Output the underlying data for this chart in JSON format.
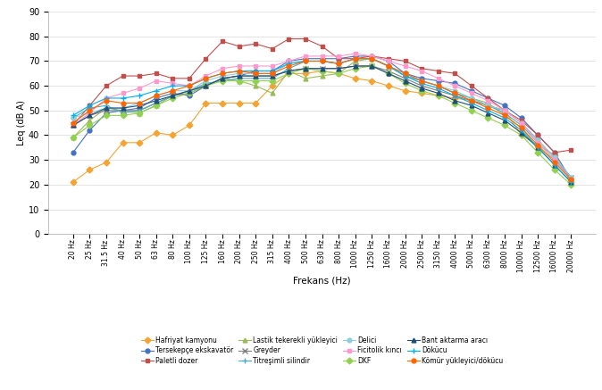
{
  "freqs": [
    20,
    25,
    31.5,
    40,
    50,
    63,
    80,
    100,
    125,
    160,
    200,
    250,
    315,
    400,
    500,
    630,
    800,
    1000,
    1250,
    1600,
    2000,
    2500,
    3150,
    4000,
    5000,
    6300,
    8000,
    10000,
    12500,
    16000,
    20000
  ],
  "freq_labels": [
    "20 Hz",
    "25 Hz",
    "31.5 Hz",
    "40 Hz",
    "50 Hz",
    "63 Hz",
    "80 Hz",
    "100 Hz",
    "125 Hz",
    "160 Hz",
    "200 Hz",
    "250 Hz",
    "315 Hz",
    "400 Hz",
    "500 Hz",
    "630 Hz",
    "800 Hz",
    "1000 Hz",
    "1250 Hz",
    "1600 Hz",
    "2000 Hz",
    "2500 Hz",
    "3150 Hz",
    "4000 Hz",
    "5000 Hz",
    "6300 Hz",
    "8000 Hz",
    "10000 Hz",
    "12500 Hz",
    "16000 Hz",
    "20000 Hz"
  ],
  "series": [
    {
      "label": "Hafriyat kamyonu",
      "color": "#F4A433",
      "marker": "D",
      "markersize": 3.5,
      "values": [
        21,
        26,
        29,
        37,
        37,
        41,
        40,
        44,
        53,
        53,
        53,
        53,
        60,
        65,
        65,
        66,
        65,
        63,
        62,
        60,
        58,
        57,
        56,
        55,
        54,
        52,
        50,
        40,
        36,
        32,
        21
      ]
    },
    {
      "label": "Tersekepçe ekskavatör",
      "color": "#4472C4",
      "marker": "o",
      "markersize": 3.5,
      "values": [
        33,
        42,
        49,
        50,
        51,
        55,
        57,
        56,
        60,
        63,
        64,
        66,
        66,
        70,
        71,
        71,
        71,
        72,
        72,
        70,
        65,
        63,
        62,
        61,
        58,
        55,
        52,
        47,
        40,
        33,
        22
      ]
    },
    {
      "label": "Paletli dozer",
      "color": "#C0504D",
      "marker": "s",
      "markersize": 3.5,
      "values": [
        44,
        52,
        60,
        64,
        64,
        65,
        63,
        63,
        71,
        78,
        76,
        77,
        75,
        79,
        79,
        76,
        71,
        71,
        72,
        71,
        70,
        67,
        66,
        65,
        60,
        55,
        50,
        46,
        40,
        33,
        34
      ]
    },
    {
      "label": "Lastik tekerekli yükleyici",
      "color": "#9BBB59",
      "marker": "^",
      "markersize": 3.5,
      "values": [
        39,
        46,
        51,
        50,
        49,
        52,
        56,
        58,
        60,
        63,
        62,
        60,
        57,
        66,
        63,
        64,
        65,
        70,
        71,
        68,
        64,
        62,
        60,
        57,
        55,
        53,
        48,
        43,
        35,
        30,
        22
      ]
    },
    {
      "label": "Greyder",
      "color": "#808080",
      "marker": "x",
      "markersize": 4,
      "values": [
        44,
        48,
        50,
        50,
        50,
        53,
        56,
        57,
        60,
        63,
        64,
        64,
        64,
        66,
        67,
        67,
        67,
        68,
        68,
        66,
        63,
        60,
        58,
        56,
        54,
        52,
        50,
        45,
        38,
        31,
        23
      ]
    },
    {
      "label": "Titreşimli silindir",
      "color": "#4BACC6",
      "marker": "+",
      "markersize": 5,
      "values": [
        47,
        51,
        52,
        49,
        50,
        53,
        56,
        58,
        61,
        62,
        63,
        63,
        63,
        67,
        70,
        70,
        69,
        71,
        71,
        68,
        64,
        62,
        60,
        57,
        55,
        52,
        49,
        44,
        37,
        30,
        23
      ]
    },
    {
      "label": "Delici",
      "color": "#92CDDC",
      "marker": "o",
      "markersize": 3.5,
      "values": [
        47,
        49,
        51,
        51,
        53,
        56,
        58,
        58,
        62,
        64,
        65,
        65,
        65,
        69,
        70,
        70,
        69,
        71,
        71,
        68,
        65,
        62,
        60,
        58,
        55,
        52,
        50,
        45,
        38,
        31,
        23
      ]
    },
    {
      "label": "Ficitolik kıncı",
      "color": "#FF99CC",
      "marker": "s",
      "markersize": 3.5,
      "values": [
        44,
        49,
        55,
        57,
        59,
        62,
        61,
        60,
        64,
        67,
        68,
        68,
        68,
        70,
        72,
        72,
        72,
        73,
        72,
        70,
        68,
        66,
        63,
        60,
        57,
        54,
        50,
        45,
        37,
        30,
        22
      ]
    },
    {
      "label": "DKF",
      "color": "#92D050",
      "marker": "D",
      "markersize": 3.5,
      "values": [
        39,
        44,
        48,
        48,
        49,
        52,
        55,
        57,
        60,
        62,
        62,
        62,
        62,
        65,
        67,
        66,
        65,
        67,
        68,
        65,
        61,
        58,
        56,
        53,
        50,
        47,
        44,
        40,
        33,
        26,
        20
      ]
    },
    {
      "label": "Bant aktarma aracı",
      "color": "#1F4E79",
      "marker": "^",
      "markersize": 3.5,
      "values": [
        44,
        48,
        51,
        51,
        52,
        54,
        56,
        58,
        60,
        63,
        64,
        64,
        64,
        66,
        67,
        67,
        67,
        68,
        68,
        65,
        62,
        59,
        57,
        54,
        52,
        49,
        46,
        41,
        35,
        28,
        21
      ]
    },
    {
      "label": "Dökücu",
      "color": "#00B0F0",
      "marker": "+",
      "markersize": 5,
      "values": [
        48,
        52,
        55,
        55,
        56,
        58,
        60,
        60,
        63,
        65,
        66,
        66,
        66,
        69,
        70,
        70,
        69,
        71,
        71,
        68,
        64,
        61,
        59,
        56,
        53,
        50,
        47,
        42,
        35,
        28,
        21
      ]
    },
    {
      "label": "Kömür yükleyici/dökücu",
      "color": "#FF6600",
      "marker": "o",
      "markersize": 3.5,
      "values": [
        45,
        50,
        54,
        53,
        53,
        56,
        58,
        60,
        63,
        65,
        66,
        65,
        65,
        68,
        70,
        70,
        69,
        71,
        71,
        68,
        65,
        62,
        60,
        57,
        54,
        51,
        48,
        43,
        36,
        29,
        22
      ]
    }
  ],
  "legend_order": [
    "Hafriyat kamyonu",
    "Tersekepçe ekskavatör",
    "Paletli dozer",
    "Lastik tekerekli yükleyici",
    "Greyder",
    "Titreşimli silindir",
    "Delici",
    "Ficitolik kıncı",
    "DKF",
    "Bant aktarma aracı",
    "Dökücu",
    "Kömür yükleyici/dökücu"
  ],
  "ylabel": "Leq (dB A)",
  "xlabel": "Frekans (Hz)",
  "ylim": [
    0,
    90
  ],
  "yticks": [
    0,
    10,
    20,
    30,
    40,
    50,
    60,
    70,
    80,
    90
  ],
  "legend_ncol": 4,
  "background_color": "#FFFFFF"
}
